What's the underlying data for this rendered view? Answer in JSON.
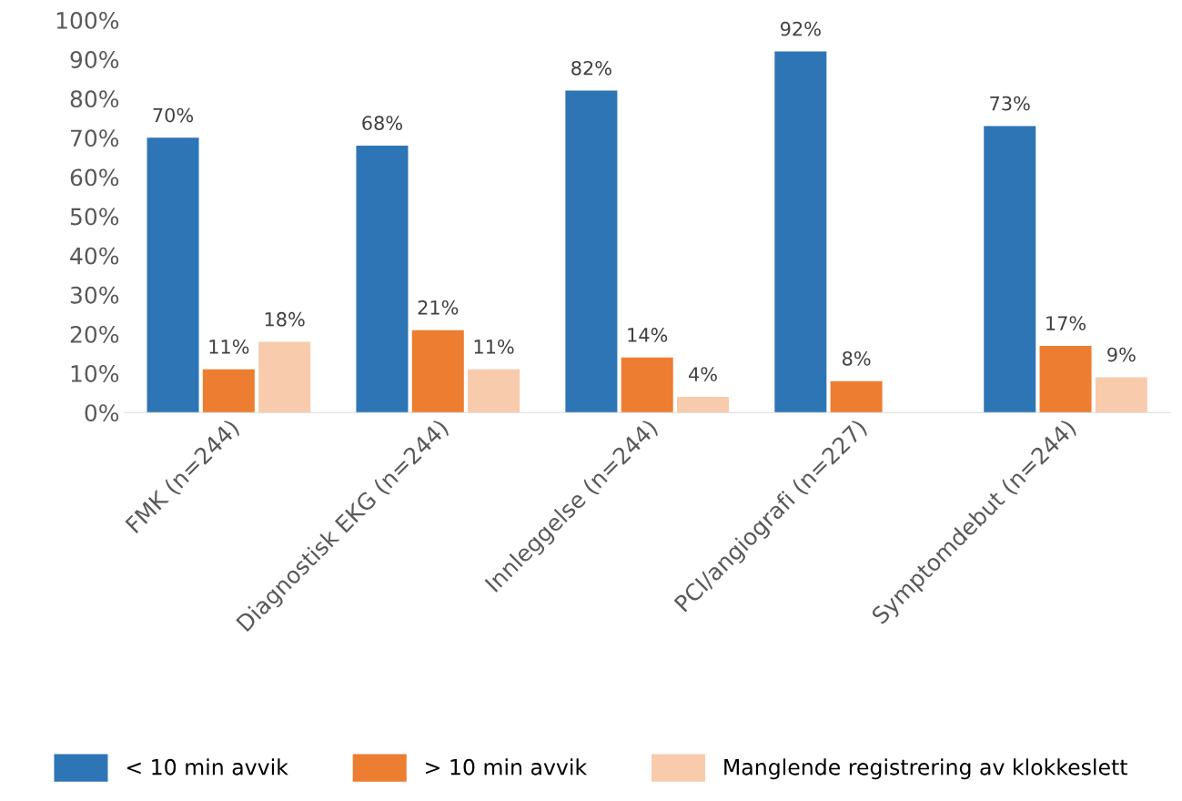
{
  "chart_data": {
    "type": "bar",
    "categories": [
      "FMK (n=244)",
      "Diagnostisk EKG (n=244)",
      "Innleggelse (n=244)",
      "PCI/angiografi (n=227)",
      "Symptomdebut (n=244)"
    ],
    "series": [
      {
        "name": "< 10 min avvik",
        "color": "#2e75b6",
        "values": [
          70,
          68,
          82,
          92,
          73
        ],
        "value_labels": [
          "70%",
          "68%",
          "82%",
          "92%",
          "73%"
        ]
      },
      {
        "name": "> 10 min avvik",
        "color": "#ed7d31",
        "values": [
          11,
          21,
          14,
          8,
          17
        ],
        "value_labels": [
          "11%",
          "21%",
          "14%",
          "8%",
          "17%"
        ]
      },
      {
        "name": "Manglende registrering av klokkeslett",
        "color": "#f8cbad",
        "values": [
          18,
          11,
          4,
          null,
          9
        ],
        "value_labels": [
          "18%",
          "11%",
          "4%",
          null,
          "9%"
        ]
      }
    ],
    "ylim": [
      0,
      100
    ],
    "yticks": [
      {
        "value": 0,
        "label": "0%"
      },
      {
        "value": 10,
        "label": "10%"
      },
      {
        "value": 20,
        "label": "20%"
      },
      {
        "value": 30,
        "label": "30%"
      },
      {
        "value": 40,
        "label": "40%"
      },
      {
        "value": 50,
        "label": "50%"
      },
      {
        "value": 60,
        "label": "60%"
      },
      {
        "value": 70,
        "label": "70%"
      },
      {
        "value": 80,
        "label": "80%"
      },
      {
        "value": 90,
        "label": "90%"
      },
      {
        "value": 100,
        "label": "100%"
      }
    ],
    "grid": false,
    "legend": "bottom"
  }
}
